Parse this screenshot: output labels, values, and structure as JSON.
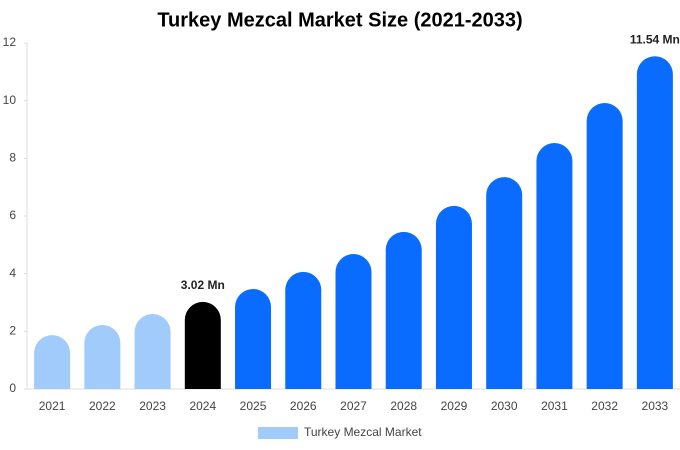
{
  "chart_data": {
    "type": "bar",
    "title": "Turkey Mezcal Market Size (2021-2033)",
    "categories": [
      "2021",
      "2022",
      "2023",
      "2024",
      "2025",
      "2026",
      "2027",
      "2028",
      "2029",
      "2030",
      "2031",
      "2032",
      "2033"
    ],
    "series": [
      {
        "name": "Turkey Mezcal Market",
        "color": "#a0cbfa",
        "colors": [
          "#a0cbfa",
          "#a0cbfa",
          "#a0cbfa",
          "#000000",
          "#0a6cff",
          "#0a6cff",
          "#0a6cff",
          "#0a6cff",
          "#0a6cff",
          "#0a6cff",
          "#0a6cff",
          "#0a6cff",
          "#0a6cff"
        ],
        "values": [
          1.87,
          2.22,
          2.6,
          3.02,
          3.47,
          4.06,
          4.68,
          5.45,
          6.35,
          7.35,
          8.53,
          9.92,
          11.54
        ],
        "value_labels": [
          null,
          null,
          null,
          "3.02 Mn",
          null,
          null,
          null,
          null,
          null,
          null,
          null,
          null,
          "11.54 Mn"
        ]
      }
    ],
    "ylim": [
      0,
      12
    ],
    "yticks": [
      0,
      2,
      4,
      6,
      8,
      10,
      12
    ],
    "grid": false
  }
}
